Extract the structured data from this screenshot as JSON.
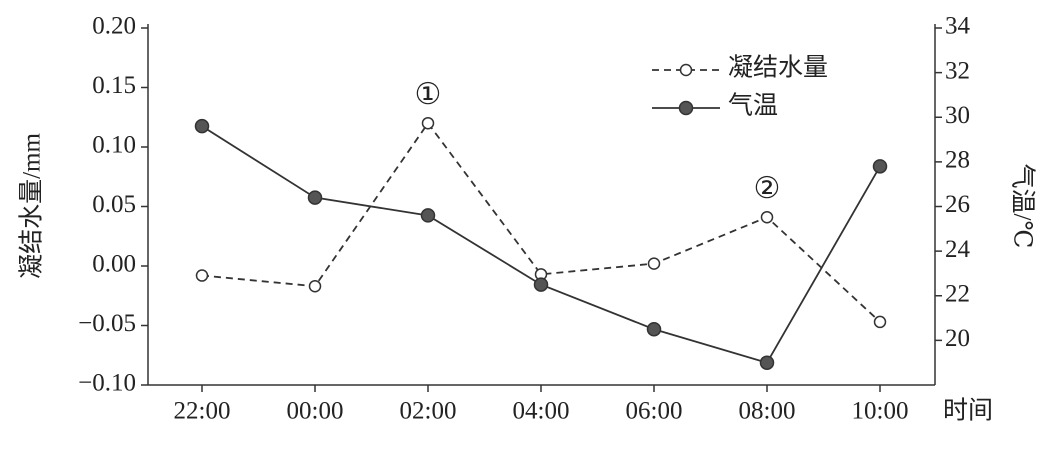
{
  "chart_data": {
    "type": "line",
    "x_label": "时间",
    "y_label": "凝结水量/mm",
    "y2_label": "气温/℃",
    "categories": [
      "22:00",
      "00:00",
      "02:00",
      "04:00",
      "06:00",
      "08:00",
      "10:00"
    ],
    "series": [
      {
        "name": "凝结水量",
        "color": "#333333",
        "line_style": "dashed",
        "marker": "open",
        "axis": "y",
        "values": [
          -0.008,
          -0.017,
          0.12,
          -0.007,
          0.002,
          0.041,
          -0.047
        ]
      },
      {
        "name": "气温",
        "color": "#333333",
        "line_style": "solid",
        "marker": "filled",
        "axis": "y2",
        "values": [
          29.6,
          26.4,
          25.6,
          22.5,
          20.5,
          19.0,
          27.8
        ]
      }
    ],
    "ylim": [
      -0.1,
      0.2
    ],
    "yticks": [
      {
        "value": -0.1,
        "label": "−0.10"
      },
      {
        "value": -0.05,
        "label": "−0.05"
      },
      {
        "value": 0,
        "label": "0.00"
      },
      0.05,
      {
        "value": 0.1,
        "label": "0.10"
      },
      0.15,
      {
        "value": 0.2,
        "label": "0.20"
      }
    ],
    "y2lim": [
      18,
      34
    ],
    "y2ticks": [
      20,
      22,
      24,
      26,
      28,
      30,
      32,
      34
    ],
    "legend": "upper right",
    "annotations": [
      {
        "text": "①",
        "category": "02:00"
      },
      {
        "text": "②",
        "category": "08:00"
      }
    ]
  }
}
